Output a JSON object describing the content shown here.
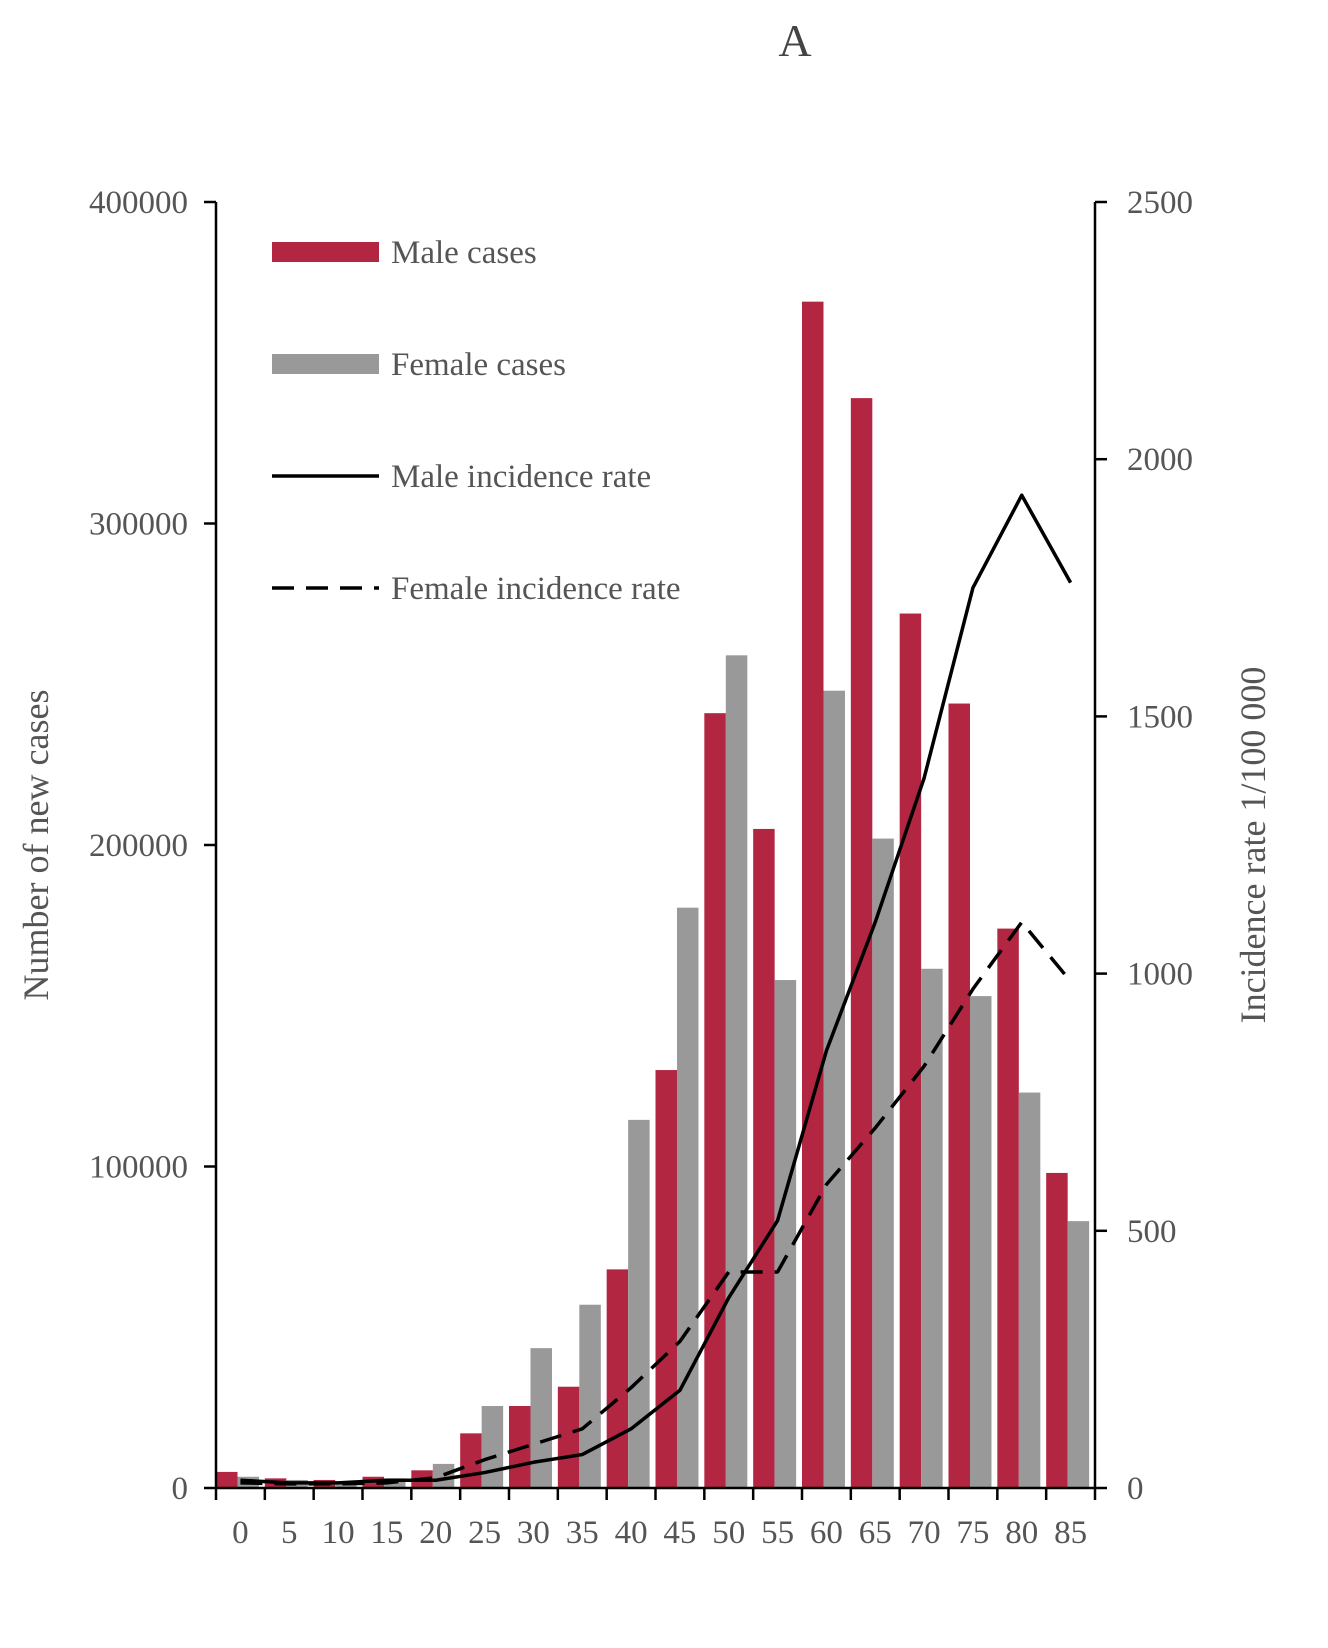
{
  "chart_data": {
    "type": "bar",
    "title": "A",
    "categories": [
      "0",
      "5",
      "10",
      "15",
      "20",
      "25",
      "30",
      "35",
      "40",
      "45",
      "50",
      "55",
      "60",
      "65",
      "70",
      "75",
      "80",
      "85"
    ],
    "ylabel": "Number of new cases",
    "y2label": "Incidence rate 1/100 000",
    "ylim": [
      0,
      400000
    ],
    "y2lim": [
      0,
      2500
    ],
    "yticks": [
      "0",
      "100000",
      "200000",
      "300000",
      "400000"
    ],
    "y2ticks": [
      "0",
      "500",
      "1000",
      "1500",
      "2000",
      "2500"
    ],
    "grid": false,
    "legend_position": "top-left",
    "series": [
      {
        "name": "Male cases",
        "type": "bar",
        "axis": "left",
        "color": "#b22642",
        "values": [
          5000,
          3000,
          2500,
          3500,
          5500,
          17000,
          25500,
          31500,
          68000,
          130000,
          241000,
          205000,
          369000,
          339000,
          272000,
          244000,
          174000,
          98000
        ]
      },
      {
        "name": "Female cases",
        "type": "bar",
        "axis": "left",
        "color": "#999999",
        "values": [
          3500,
          2500,
          2000,
          3000,
          7500,
          25500,
          43500,
          57000,
          114500,
          180500,
          259000,
          158000,
          248000,
          202000,
          161500,
          153000,
          123000,
          83000
        ]
      },
      {
        "name": "Male incidence rate",
        "type": "line",
        "axis": "right",
        "color": "#000000",
        "dash": "solid",
        "values": [
          15,
          10,
          10,
          15,
          15,
          30,
          50,
          65,
          115,
          190,
          370,
          520,
          850,
          1100,
          1380,
          1750,
          1930,
          1760
        ]
      },
      {
        "name": "Female incidence rate",
        "type": "line",
        "axis": "right",
        "color": "#000000",
        "dash": "dashed",
        "values": [
          10,
          8,
          8,
          10,
          20,
          55,
          85,
          115,
          195,
          285,
          420,
          420,
          590,
          700,
          820,
          970,
          1100,
          985
        ]
      }
    ]
  }
}
